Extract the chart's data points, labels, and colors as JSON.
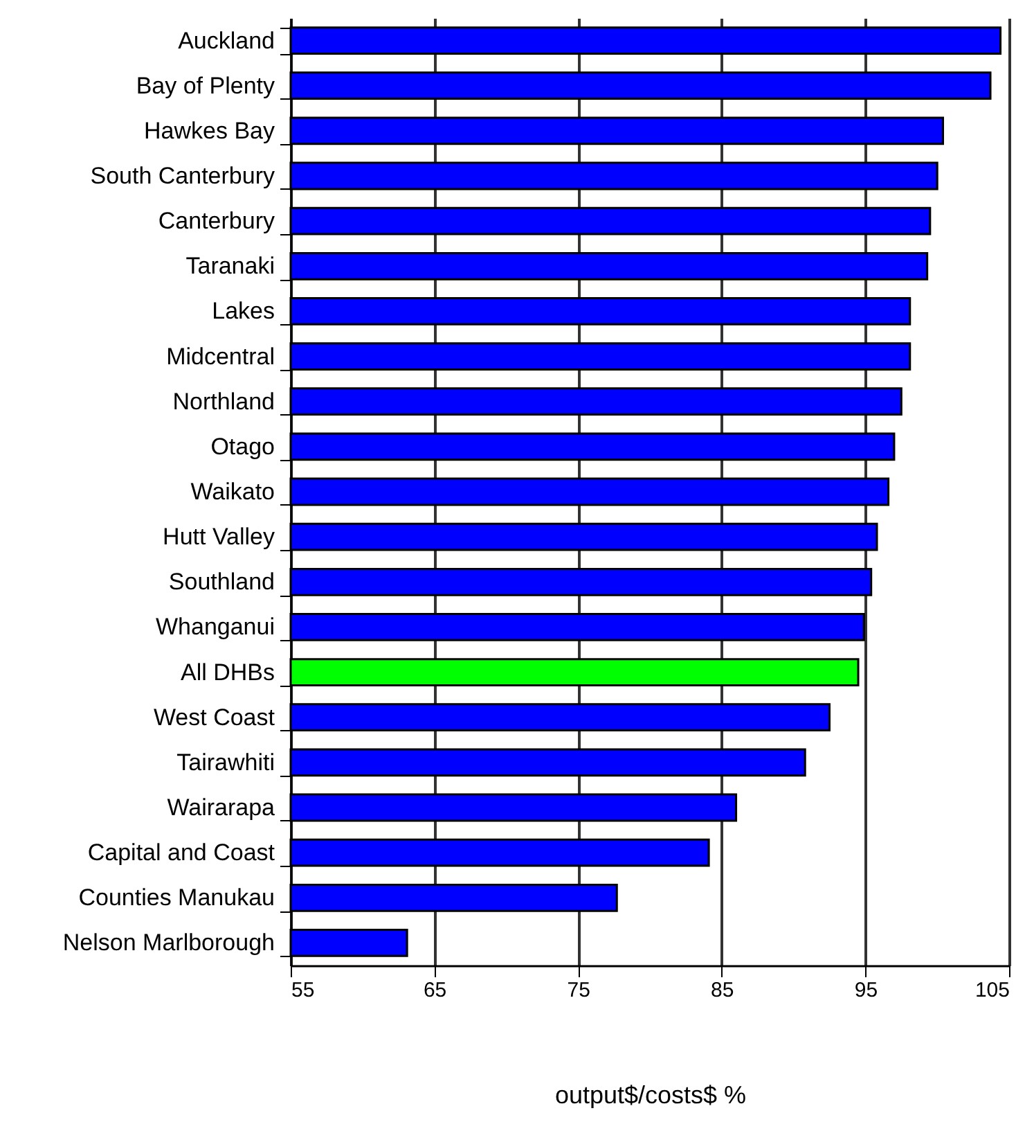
{
  "chart_data": {
    "type": "bar",
    "orientation": "horizontal",
    "xlabel": "output$/costs$ %",
    "categories": [
      "Auckland",
      "Bay of Plenty",
      "Hawkes Bay",
      "South Canterbury",
      "Canterbury",
      "Taranaki",
      "Lakes",
      "Midcentral",
      "Northland",
      "Otago",
      "Waikato",
      "Hutt Valley",
      "Southland",
      "Whanganui",
      "All DHBs",
      "West Coast",
      "Tairawhiti",
      "Wairarapa",
      "Capital and Coast",
      "Counties Manukau",
      "Nelson Marlborough"
    ],
    "values": [
      104.4,
      103.7,
      100.4,
      100.0,
      99.5,
      99.3,
      98.1,
      98.1,
      97.5,
      97.0,
      96.6,
      95.8,
      95.4,
      94.9,
      94.5,
      92.5,
      90.8,
      86.0,
      84.1,
      77.7,
      63.1
    ],
    "colors": [
      "#0000ff",
      "#0000ff",
      "#0000ff",
      "#0000ff",
      "#0000ff",
      "#0000ff",
      "#0000ff",
      "#0000ff",
      "#0000ff",
      "#0000ff",
      "#0000ff",
      "#0000ff",
      "#0000ff",
      "#0000ff",
      "#00ff00",
      "#0000ff",
      "#0000ff",
      "#0000ff",
      "#0000ff",
      "#0000ff",
      "#0000ff"
    ],
    "xlim": [
      55,
      105
    ],
    "xticks": [
      55,
      65,
      75,
      85,
      95,
      105
    ],
    "grid": "x"
  }
}
